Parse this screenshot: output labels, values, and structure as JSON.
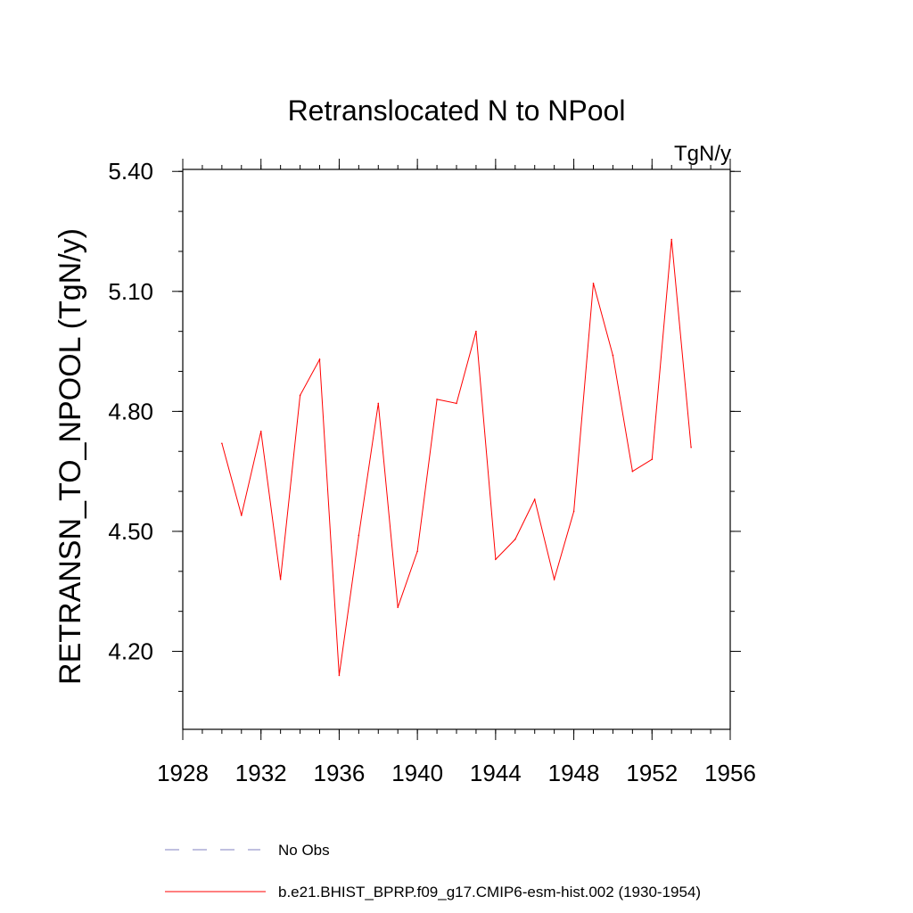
{
  "chart_data": {
    "type": "line",
    "title": "Retranslocated N to NPool",
    "units_label": "TgN/y",
    "ylabel": "RETRANSN_TO_NPOOL  (TgN/y)",
    "xlabel": "",
    "xlim": [
      1928,
      1956
    ],
    "ylim": [
      4.005,
      5.405
    ],
    "x_ticks": [
      1928,
      1932,
      1936,
      1940,
      1944,
      1948,
      1952,
      1956
    ],
    "y_ticks": [
      4.2,
      4.5,
      4.8,
      5.1,
      5.4
    ],
    "y_tick_labels": [
      "4.20",
      "4.50",
      "4.80",
      "5.10",
      "5.40"
    ],
    "x_minor_step": 1,
    "y_minor_step": 0.1,
    "grid": false,
    "series": [
      {
        "name": "b.e21.BHIST_BPRP.f09_g17.CMIP6-esm-hist.002 (1930-1954)",
        "color": "#ff0000",
        "style": "solid",
        "x": [
          1930,
          1931,
          1932,
          1933,
          1934,
          1935,
          1936,
          1937,
          1938,
          1939,
          1940,
          1941,
          1942,
          1943,
          1944,
          1945,
          1946,
          1947,
          1948,
          1949,
          1950,
          1951,
          1952,
          1953,
          1954
        ],
        "values": [
          4.72,
          4.54,
          4.75,
          4.38,
          4.84,
          4.93,
          4.14,
          4.49,
          4.82,
          4.31,
          4.45,
          4.83,
          4.82,
          5.0,
          4.43,
          4.48,
          4.58,
          4.38,
          4.55,
          5.12,
          4.94,
          4.65,
          4.68,
          5.23,
          4.71
        ]
      }
    ],
    "legend": [
      {
        "label": "No Obs",
        "color": "#8080c0",
        "style": "dashed"
      },
      {
        "label": "b.e21.BHIST_BPRP.f09_g17.CMIP6-esm-hist.002 (1930-1954)",
        "color": "#ff0000",
        "style": "solid"
      }
    ],
    "legend_position": "bottom"
  }
}
